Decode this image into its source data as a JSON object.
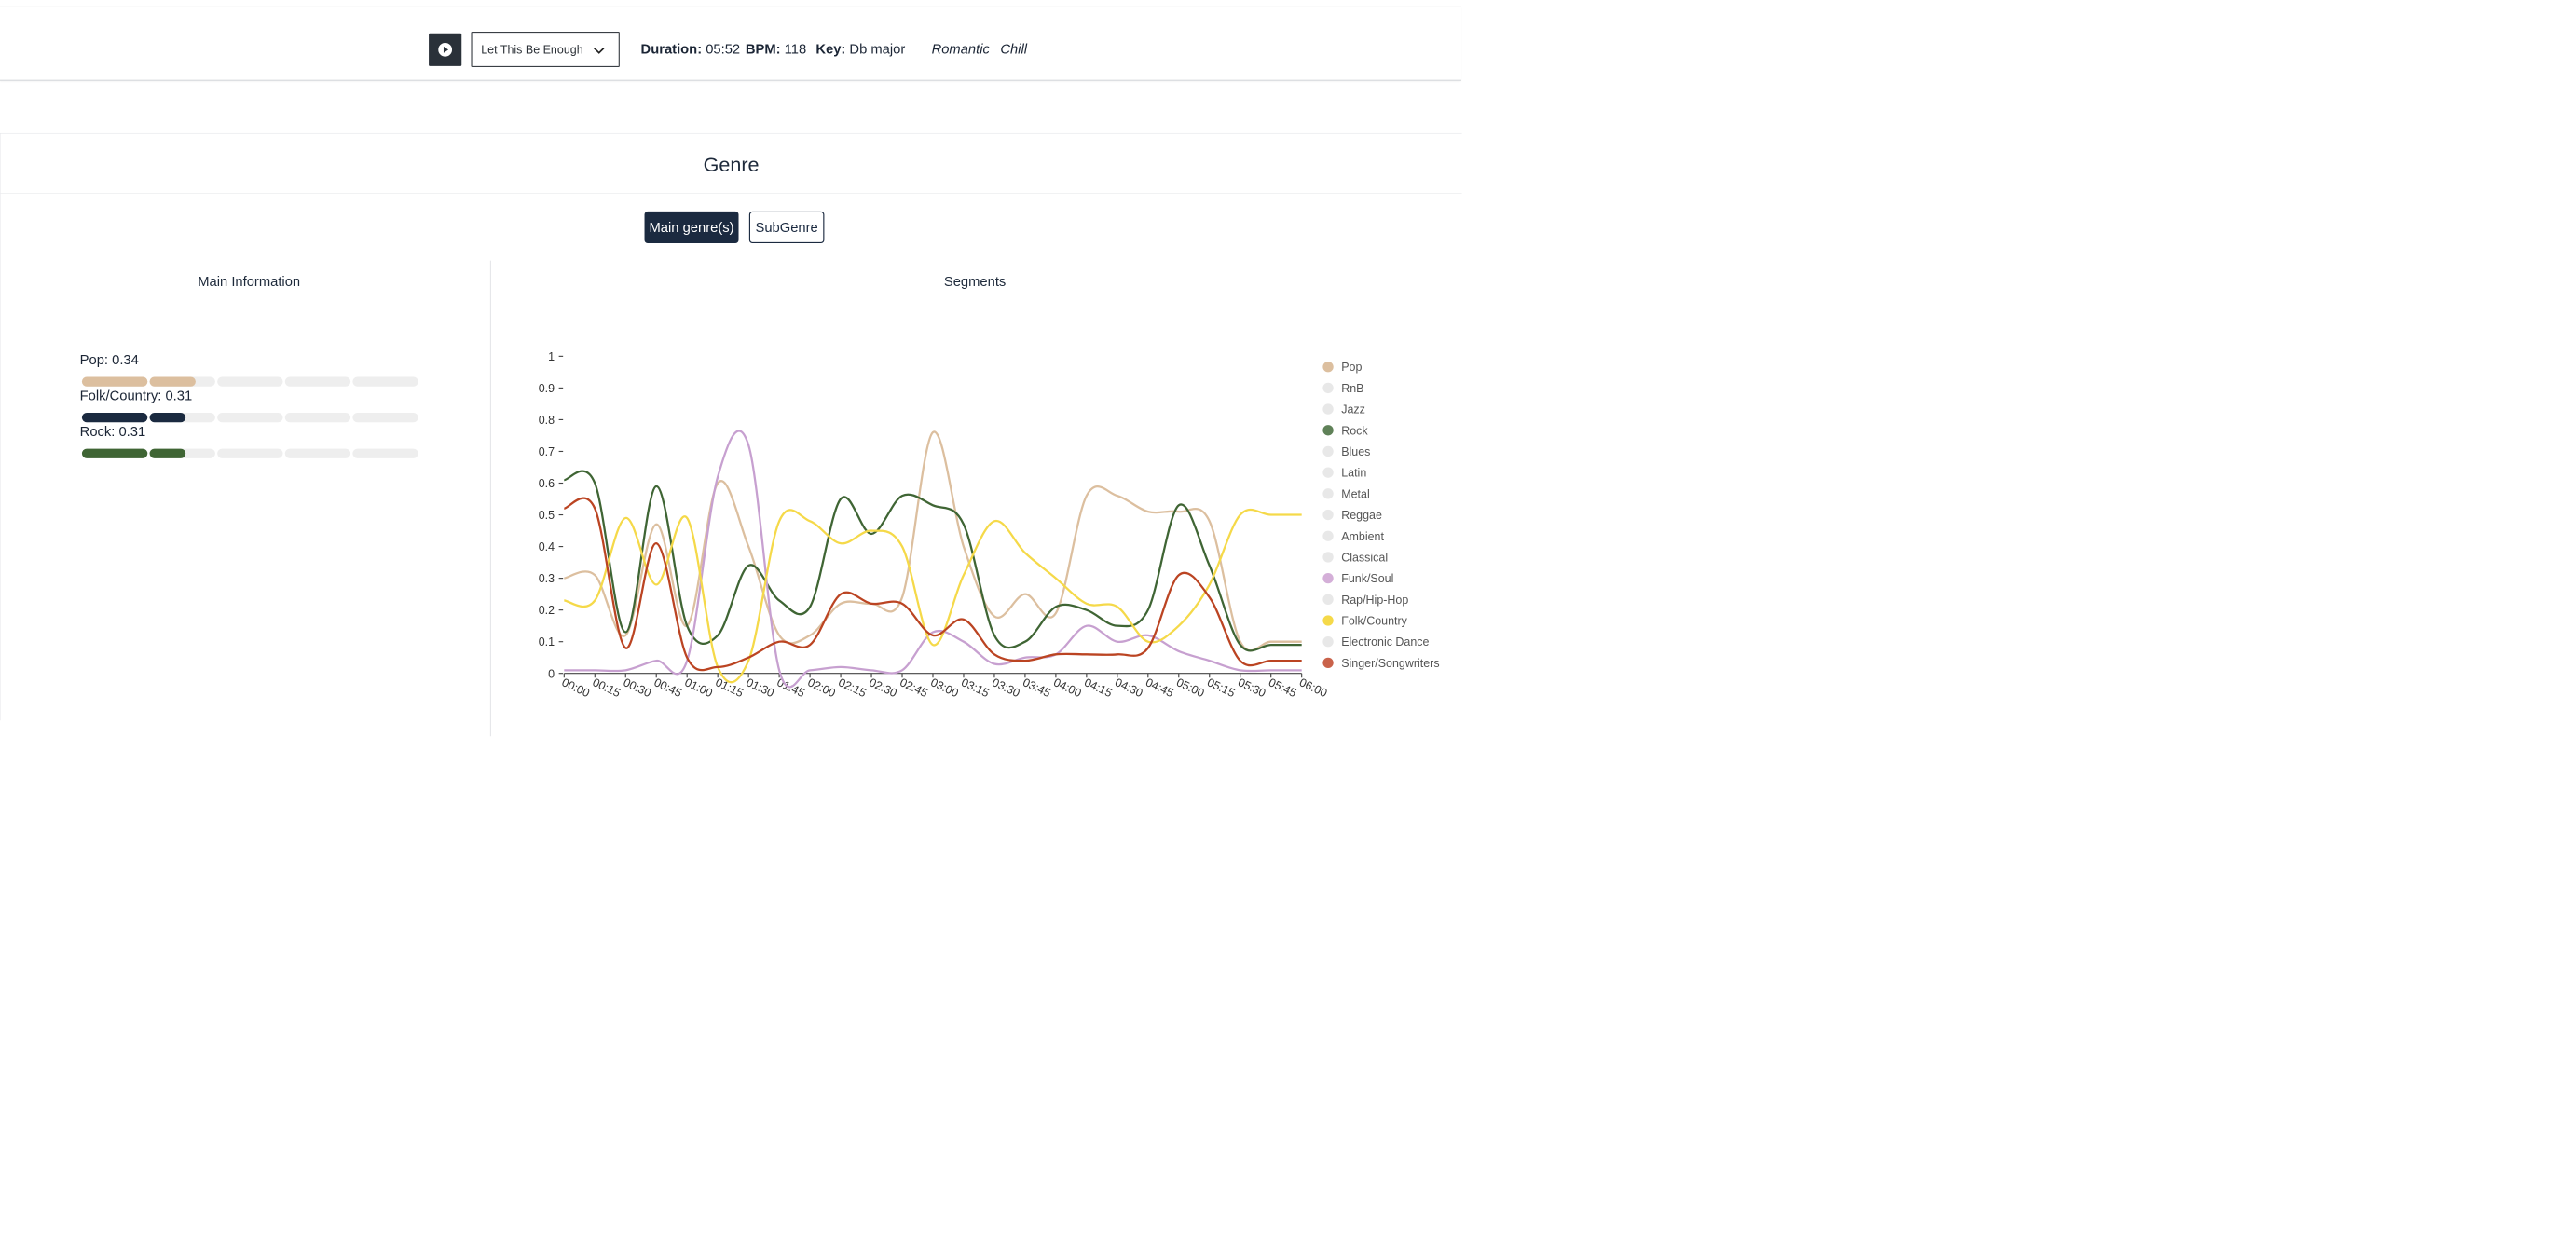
{
  "player": {
    "track_title": "Let This Be Enough",
    "duration_label": "Duration:",
    "duration_value": "05:52",
    "bpm_label": "BPM:",
    "bpm_value": "118",
    "key_label": "Key:",
    "key_value": "Db major",
    "moods": [
      "Romantic",
      "Chill"
    ],
    "icons": {
      "play": "play-icon",
      "dropdown": "chevron-down-icon"
    }
  },
  "genre_card": {
    "title": "Genre",
    "tabs": [
      {
        "label": "Main genre(s)",
        "active": true
      },
      {
        "label": "SubGenre",
        "active": false
      }
    ],
    "main_info": {
      "title": "Main Information",
      "genres": [
        {
          "name": "Pop:",
          "value": "0.34",
          "score": 0.34,
          "color": "#dcbf9f"
        },
        {
          "name": "Folk/Country:",
          "value": "0.31",
          "score": 0.31,
          "color": "#1b2a40"
        },
        {
          "name": "Rock:",
          "value": "0.31",
          "score": 0.31,
          "color": "#3f6534"
        }
      ]
    },
    "segments_title": "Segments"
  },
  "chart_data": {
    "type": "line",
    "x": [
      "00:00",
      "00:15",
      "00:30",
      "00:45",
      "01:00",
      "01:15",
      "01:30",
      "01:45",
      "02:00",
      "02:15",
      "02:30",
      "02:45",
      "03:00",
      "03:15",
      "03:30",
      "03:45",
      "04:00",
      "04:15",
      "04:30",
      "04:45",
      "05:00",
      "05:15",
      "05:30",
      "05:45",
      "06:00"
    ],
    "ylim": [
      0,
      1
    ],
    "yticks": [
      "0",
      "0.1",
      "0.2",
      "0.3",
      "0.4",
      "0.5",
      "0.6",
      "0.7",
      "0.8",
      "0.9",
      "1"
    ],
    "legend_position": "right",
    "legend": [
      {
        "name": "Pop",
        "color": "#dcbf9f",
        "active": true
      },
      {
        "name": "RnB",
        "color": "#e8e8e8",
        "active": false
      },
      {
        "name": "Jazz",
        "color": "#e8e8e8",
        "active": false
      },
      {
        "name": "Rock",
        "color": "#5f8158",
        "active": true
      },
      {
        "name": "Blues",
        "color": "#e8e8e8",
        "active": false
      },
      {
        "name": "Latin",
        "color": "#e8e8e8",
        "active": false
      },
      {
        "name": "Metal",
        "color": "#e8e8e8",
        "active": false
      },
      {
        "name": "Reggae",
        "color": "#e8e8e8",
        "active": false
      },
      {
        "name": "Ambient",
        "color": "#e8e8e8",
        "active": false
      },
      {
        "name": "Classical",
        "color": "#e8e8e8",
        "active": false
      },
      {
        "name": "Funk/Soul",
        "color": "#d4afd8",
        "active": true
      },
      {
        "name": "Rap/Hip-Hop",
        "color": "#e8e8e8",
        "active": false
      },
      {
        "name": "Folk/Country",
        "color": "#f5d949",
        "active": true
      },
      {
        "name": "Electronic Dance",
        "color": "#e8e8e8",
        "active": false
      },
      {
        "name": "Singer/Songwriters",
        "color": "#c9624a",
        "active": true
      }
    ],
    "series": [
      {
        "name": "Pop",
        "color": "#dcbf9f",
        "values": [
          0.3,
          0.31,
          0.12,
          0.47,
          0.15,
          0.6,
          0.4,
          0.12,
          0.12,
          0.22,
          0.22,
          0.24,
          0.76,
          0.4,
          0.18,
          0.25,
          0.19,
          0.56,
          0.56,
          0.51,
          0.51,
          0.48,
          0.1,
          0.1,
          0.1
        ]
      },
      {
        "name": "Rock",
        "color": "#3f6534",
        "values": [
          0.61,
          0.6,
          0.13,
          0.59,
          0.15,
          0.12,
          0.34,
          0.23,
          0.21,
          0.55,
          0.44,
          0.56,
          0.53,
          0.47,
          0.12,
          0.1,
          0.21,
          0.2,
          0.15,
          0.2,
          0.53,
          0.34,
          0.09,
          0.09,
          0.09
        ]
      },
      {
        "name": "Funk/Soul",
        "color": "#c7a0d0",
        "values": [
          0.01,
          0.01,
          0.01,
          0.04,
          0.04,
          0.62,
          0.72,
          0.01,
          0.01,
          0.02,
          0.01,
          0.01,
          0.13,
          0.1,
          0.03,
          0.05,
          0.06,
          0.15,
          0.1,
          0.12,
          0.07,
          0.04,
          0.01,
          0.01,
          0.01
        ]
      },
      {
        "name": "Folk/Country",
        "color": "#f5d949",
        "values": [
          0.23,
          0.23,
          0.49,
          0.28,
          0.49,
          0.02,
          0.04,
          0.48,
          0.48,
          0.41,
          0.45,
          0.4,
          0.09,
          0.31,
          0.48,
          0.38,
          0.3,
          0.22,
          0.21,
          0.1,
          0.15,
          0.28,
          0.5,
          0.5,
          0.5
        ]
      },
      {
        "name": "Singer/Songwriters",
        "color": "#bb4422",
        "values": [
          0.52,
          0.52,
          0.08,
          0.41,
          0.05,
          0.02,
          0.05,
          0.1,
          0.09,
          0.25,
          0.22,
          0.22,
          0.12,
          0.17,
          0.06,
          0.04,
          0.06,
          0.06,
          0.06,
          0.08,
          0.31,
          0.24,
          0.04,
          0.04,
          0.04
        ]
      }
    ]
  }
}
